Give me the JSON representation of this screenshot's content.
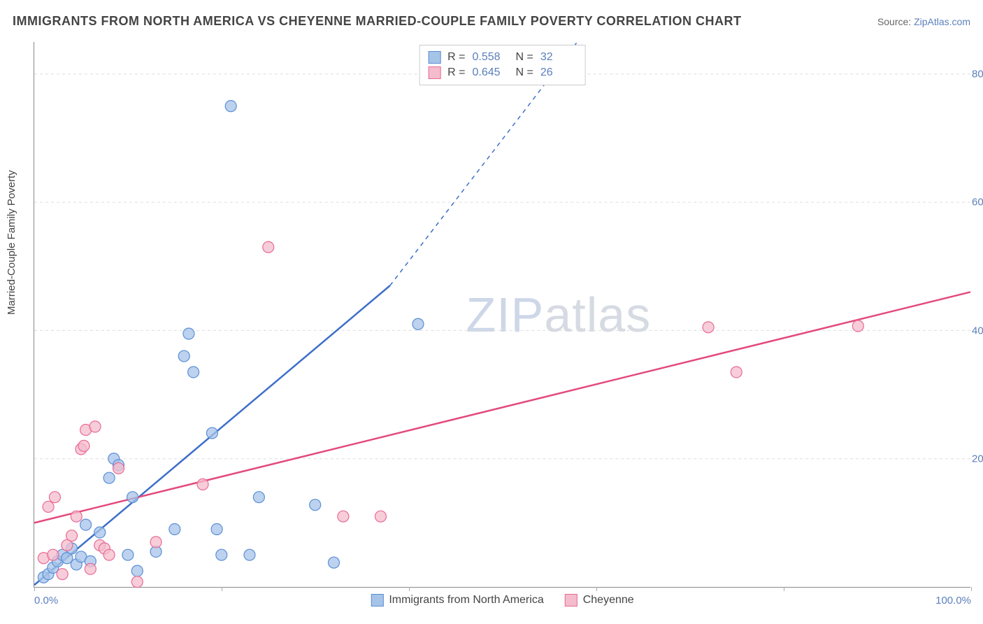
{
  "title": "IMMIGRANTS FROM NORTH AMERICA VS CHEYENNE MARRIED-COUPLE FAMILY POVERTY CORRELATION CHART",
  "source_label": "Source:",
  "source_link_text": "ZipAtlas.com",
  "y_axis_label": "Married-Couple Family Poverty",
  "watermark": {
    "bold": "ZIP",
    "light": "atlas"
  },
  "chart": {
    "type": "scatter",
    "xlim": [
      0,
      100
    ],
    "ylim": [
      0,
      85
    ],
    "x_ticks": [
      0,
      20,
      40,
      60,
      80,
      100
    ],
    "x_tick_labels": [
      "0.0%",
      "",
      "",
      "",
      "",
      "100.0%"
    ],
    "y_ticks": [
      20,
      40,
      60,
      80
    ],
    "y_tick_labels": [
      "20.0%",
      "40.0%",
      "60.0%",
      "80.0%"
    ],
    "grid_color": "#dddddd",
    "axis_color": "#888888",
    "background_color": "#ffffff",
    "series": [
      {
        "name": "Immigrants from North America",
        "fill": "#a6c3e8",
        "stroke": "#5b8fd6",
        "line_color": "#3d6fc9",
        "marker_radius": 8,
        "marker_opacity": 0.75,
        "R": "0.558",
        "N": "32",
        "trend": {
          "x1": 0,
          "y1": 0.3,
          "x2": 38,
          "y2": 47,
          "dash_extend_x2": 58,
          "dash_extend_y2": 85
        },
        "points": [
          [
            1.0,
            1.5
          ],
          [
            1.5,
            2.0
          ],
          [
            2.0,
            3.0
          ],
          [
            2.5,
            4.0
          ],
          [
            3.0,
            5.0
          ],
          [
            3.5,
            4.5
          ],
          [
            4.0,
            6.0
          ],
          [
            4.5,
            3.5
          ],
          [
            5.0,
            4.7
          ],
          [
            5.5,
            9.7
          ],
          [
            6.0,
            4.0
          ],
          [
            7.0,
            8.5
          ],
          [
            8.0,
            17.0
          ],
          [
            8.5,
            20.0
          ],
          [
            9.0,
            19.0
          ],
          [
            10.0,
            5.0
          ],
          [
            10.5,
            14.0
          ],
          [
            11.0,
            2.5
          ],
          [
            13.0,
            5.5
          ],
          [
            15.0,
            9.0
          ],
          [
            16.0,
            36.0
          ],
          [
            16.5,
            39.5
          ],
          [
            17.0,
            33.5
          ],
          [
            19.0,
            24.0
          ],
          [
            19.5,
            9.0
          ],
          [
            20.0,
            5.0
          ],
          [
            21.0,
            75.0
          ],
          [
            23.0,
            5.0
          ],
          [
            24.0,
            14.0
          ],
          [
            30.0,
            12.8
          ],
          [
            32.0,
            3.8
          ],
          [
            41.0,
            41.0
          ]
        ]
      },
      {
        "name": "Cheyenne",
        "fill": "#f4bccd",
        "stroke": "#e96a94",
        "line_color": "#e34a7c",
        "marker_radius": 8,
        "marker_opacity": 0.75,
        "R": "0.645",
        "N": "26",
        "trend": {
          "x1": 0,
          "y1": 10,
          "x2": 100,
          "y2": 46
        },
        "points": [
          [
            1.0,
            4.5
          ],
          [
            1.5,
            12.5
          ],
          [
            2.0,
            5.0
          ],
          [
            2.2,
            14.0
          ],
          [
            3.0,
            2.0
          ],
          [
            3.5,
            6.5
          ],
          [
            4.0,
            8.0
          ],
          [
            4.5,
            11.0
          ],
          [
            5.0,
            21.5
          ],
          [
            5.3,
            22.0
          ],
          [
            5.5,
            24.5
          ],
          [
            6.0,
            2.8
          ],
          [
            6.5,
            25.0
          ],
          [
            7.0,
            6.5
          ],
          [
            7.5,
            6.0
          ],
          [
            8.0,
            5.0
          ],
          [
            9.0,
            18.5
          ],
          [
            11.0,
            0.8
          ],
          [
            13.0,
            7.0
          ],
          [
            18.0,
            16.0
          ],
          [
            25.0,
            53.0
          ],
          [
            33.0,
            11.0
          ],
          [
            37.0,
            11.0
          ],
          [
            72.0,
            40.5
          ],
          [
            75.0,
            33.5
          ],
          [
            88.0,
            40.7
          ]
        ]
      }
    ]
  },
  "legend_top": {
    "r_prefix": "R =",
    "n_prefix": "N ="
  },
  "legend_bottom_labels": [
    "Immigrants from North America",
    "Cheyenne"
  ]
}
